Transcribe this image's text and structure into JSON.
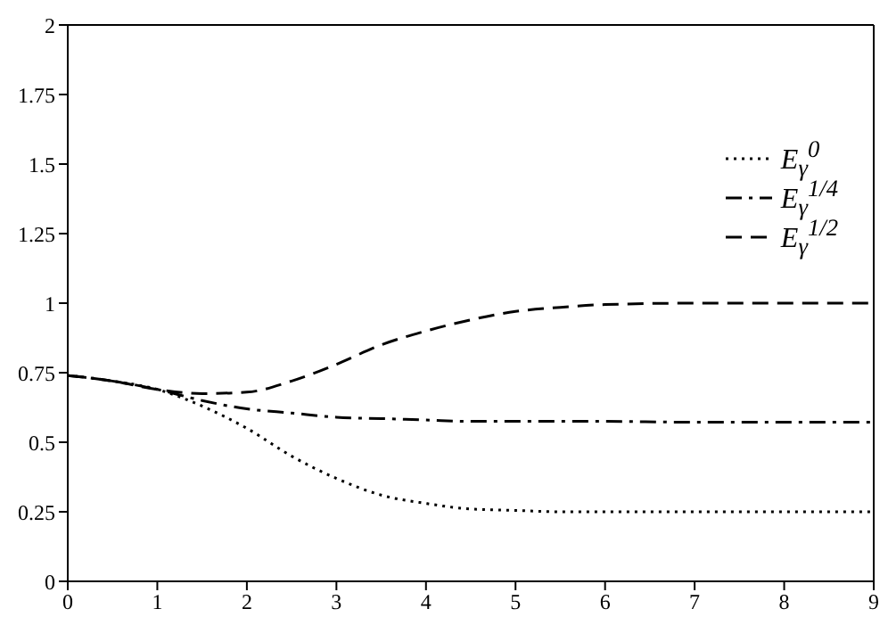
{
  "chart_data": {
    "type": "line",
    "x": [
      0,
      0.5,
      1,
      1.5,
      2,
      2.5,
      3,
      3.5,
      4,
      4.5,
      5,
      5.5,
      6,
      7,
      8,
      9
    ],
    "series": [
      {
        "name": "E$_{γ}$$^{0}$",
        "color": "#000000",
        "line_style": "dotted",
        "values": [
          0.74,
          0.72,
          0.69,
          0.63,
          0.55,
          0.45,
          0.37,
          0.31,
          0.28,
          0.26,
          0.255,
          0.25,
          0.25,
          0.25,
          0.25,
          0.25
        ]
      },
      {
        "name": "E$_{γ}$$^{1/4}$",
        "color": "#000000",
        "line_style": "dashdot",
        "values": [
          0.74,
          0.72,
          0.69,
          0.65,
          0.62,
          0.605,
          0.59,
          0.585,
          0.58,
          0.575,
          0.575,
          0.575,
          0.575,
          0.572,
          0.572,
          0.572
        ]
      },
      {
        "name": "E$_{γ}$$^{1/2}$",
        "color": "#000000",
        "line_style": "dashed",
        "values": [
          0.74,
          0.72,
          0.69,
          0.675,
          0.68,
          0.72,
          0.78,
          0.85,
          0.9,
          0.94,
          0.97,
          0.985,
          0.995,
          1.0,
          1.0,
          1.0
        ]
      }
    ],
    "xlim": [
      0,
      9
    ],
    "xticks": [
      0,
      1,
      2,
      3,
      4,
      5,
      6,
      7,
      8,
      9
    ],
    "ylim": [
      0,
      2
    ],
    "yticks": [
      0,
      0.25,
      0.5,
      0.75,
      1,
      1.25,
      1.5,
      1.75,
      2
    ],
    "grid": false,
    "legend": "top right",
    "marker": "none"
  }
}
